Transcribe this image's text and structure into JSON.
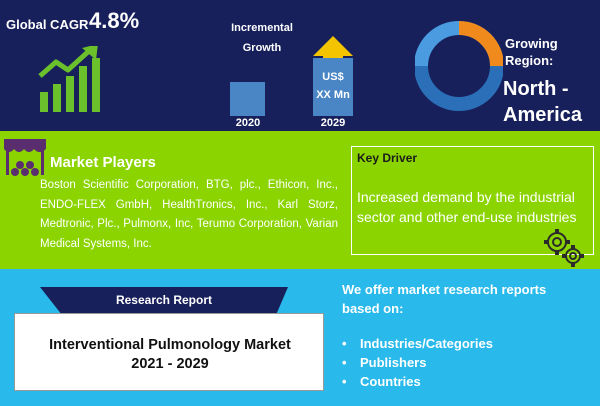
{
  "top": {
    "cagr_label": "Global CAGR",
    "cagr_value": "4.8%",
    "incremental_title": "Incremental Growth",
    "bar_2029_label_line1": "US$",
    "bar_2029_label_line2": "XX Mn",
    "year_start": "2020",
    "year_end": "2029",
    "region_label_line1": "Growing",
    "region_label_line2": "Region:",
    "region_value_line1": "North -",
    "region_value_line2": "America"
  },
  "middle": {
    "players_title": "Market Players",
    "players_text": "Boston Scientific Corporation, BTG, plc., Ethicon, Inc., ENDO-FLEX GmbH, HealthTronics, Inc., Karl Storz, Medtronic, Plc., Pulmonx, Inc, Terumo Corporation, Varian Medical Systems, Inc.",
    "driver_title": "Key Driver",
    "driver_text": "Increased demand by the industrial sector and other end-use industries"
  },
  "bottom": {
    "report_tab": "Research Report",
    "title_line1": "Interventional Pulmonology Market",
    "title_line2": "2021 - 2029",
    "offer_text": "We offer market research reports based on:",
    "offer_items": [
      "Industries/Categories",
      "Publishers",
      "Countries"
    ]
  },
  "colors": {
    "top_bg": "#17205a",
    "middle_bg": "#8bd400",
    "bottom_bg": "#29b9ea",
    "bar_2020": "#4a86c5",
    "arrow_yellow": "#f5c400",
    "growth_green": "#6ac12b"
  },
  "icons": [
    "growth-chart-icon",
    "donut-ring-icon",
    "shop-icon",
    "gear-icon"
  ]
}
